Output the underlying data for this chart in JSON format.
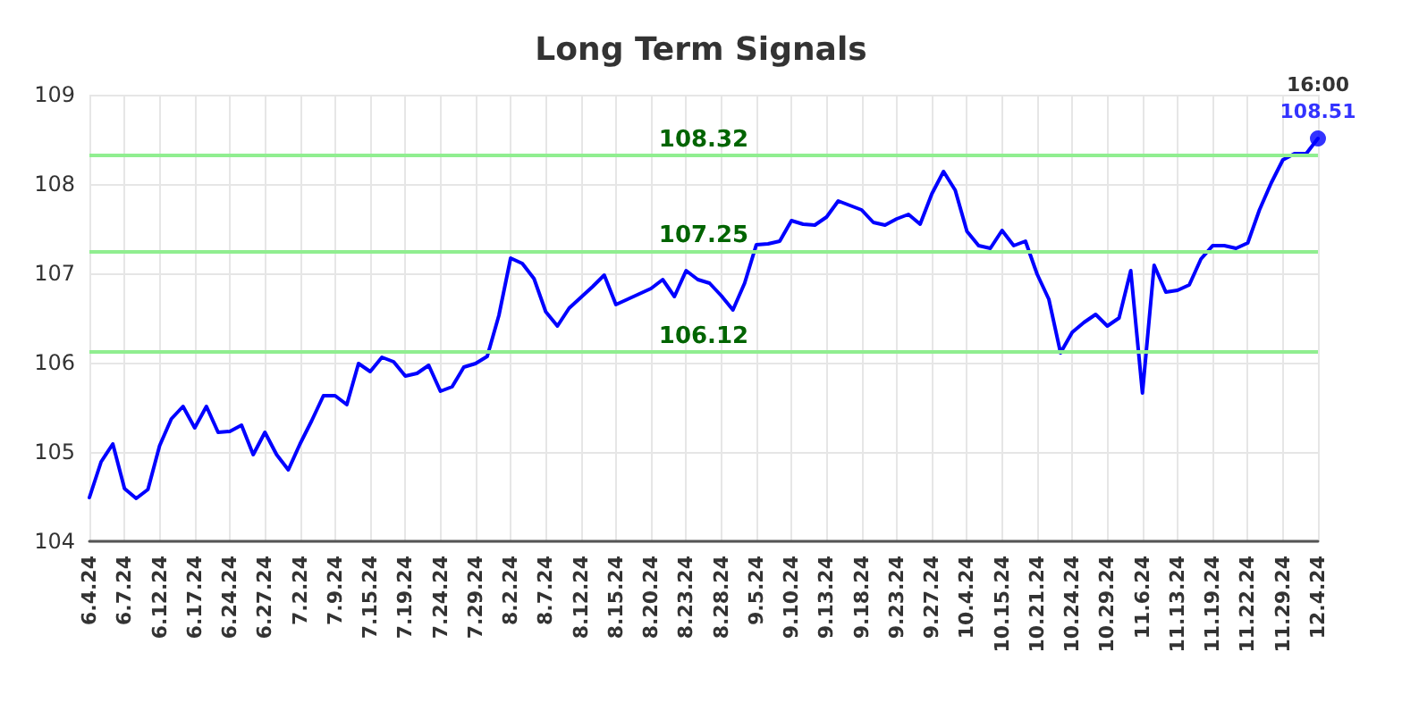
{
  "chart_data": {
    "type": "line",
    "title": "Long Term Signals",
    "categories": [
      "6.4.24",
      null,
      null,
      "6.7.24",
      null,
      null,
      "6.12.24",
      null,
      null,
      "6.17.24",
      null,
      null,
      "6.24.24",
      null,
      null,
      "6.27.24",
      null,
      null,
      "7.2.24",
      null,
      null,
      "7.9.24",
      null,
      null,
      "7.15.24",
      null,
      null,
      "7.19.24",
      null,
      null,
      "7.24.24",
      null,
      null,
      "7.29.24",
      null,
      null,
      "8.2.24",
      null,
      null,
      "8.7.24",
      null,
      null,
      "8.12.24",
      null,
      null,
      "8.15.24",
      null,
      null,
      "8.20.24",
      null,
      null,
      "8.23.24",
      null,
      null,
      "8.28.24",
      null,
      null,
      "9.5.24",
      null,
      null,
      "9.10.24",
      null,
      null,
      "9.13.24",
      null,
      null,
      "9.18.24",
      null,
      null,
      "9.23.24",
      null,
      null,
      "9.27.24",
      null,
      null,
      "10.4.24",
      null,
      null,
      "10.15.24",
      null,
      null,
      "10.21.24",
      null,
      null,
      "10.24.24",
      null,
      null,
      "10.29.24",
      null,
      null,
      "11.6.24",
      null,
      null,
      "11.13.24",
      null,
      null,
      "11.19.24",
      null,
      null,
      "11.22.24",
      null,
      null,
      "11.29.24",
      null,
      null,
      "12.4.24"
    ],
    "series": [
      {
        "color": "#0000ff",
        "marker": "none",
        "values": [
          104.49,
          104.89,
          105.09,
          104.59,
          104.48,
          104.58,
          105.07,
          105.37,
          105.51,
          105.27,
          105.51,
          105.22,
          105.23,
          105.3,
          104.97,
          105.22,
          104.97,
          104.8,
          105.09,
          105.35,
          105.63,
          105.63,
          105.53,
          105.99,
          105.9,
          106.06,
          106.01,
          105.85,
          105.88,
          105.97,
          105.68,
          105.73,
          105.95,
          105.99,
          106.07,
          106.53,
          107.17,
          107.11,
          106.94,
          106.57,
          106.41,
          106.61,
          106.73,
          106.85,
          106.98,
          106.65,
          106.71,
          106.77,
          106.83,
          106.93,
          106.74,
          107.03,
          106.93,
          106.89,
          106.75,
          106.59,
          106.89,
          107.32,
          107.33,
          107.36,
          107.59,
          107.55,
          107.54,
          107.63,
          107.81,
          107.76,
          107.71,
          107.57,
          107.54,
          107.61,
          107.66,
          107.55,
          107.89,
          108.14,
          107.93,
          107.47,
          107.31,
          107.28,
          107.48,
          107.31,
          107.36,
          106.99,
          106.71,
          106.11,
          106.34,
          106.45,
          106.54,
          106.41,
          106.5,
          107.03,
          105.66,
          107.09,
          106.79,
          106.81,
          106.87,
          107.16,
          107.31,
          107.31,
          107.28,
          107.34,
          107.71,
          108.01,
          108.27,
          108.34,
          108.34,
          108.51
        ]
      },
      {
        "type": "scatter",
        "marker": "circle",
        "color": "#0000ff",
        "x": [
          "12.4.24"
        ],
        "values": [
          108.51
        ],
        "value_labels": [
          "108.51"
        ]
      }
    ],
    "ylim": [
      104,
      109
    ],
    "yticks": [
      104,
      105,
      106,
      107,
      108,
      109
    ],
    "grid": true,
    "line_style": "solid",
    "ref_lines": [
      {
        "axis": "y",
        "value": 108.32,
        "label": "108.32",
        "color": "#90ee90"
      },
      {
        "axis": "y",
        "value": 107.25,
        "label": "107.25",
        "color": "#90ee90"
      },
      {
        "axis": "y",
        "value": 106.12,
        "label": "106.12",
        "color": "#90ee90"
      }
    ],
    "annotations": [
      {
        "text": "16:00",
        "x": "12.4.24",
        "y": 108.51
      }
    ]
  }
}
